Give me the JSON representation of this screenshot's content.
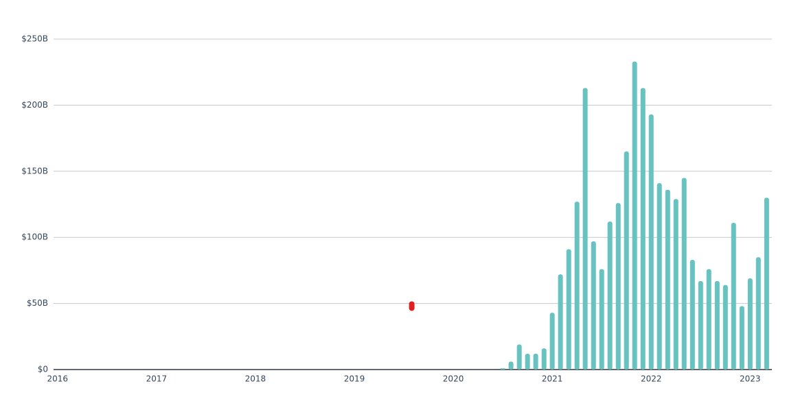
{
  "chart_data": {
    "type": "bar",
    "color": "#67c2c0",
    "grid": true,
    "x": [
      2020.5,
      2020.583,
      2020.667,
      2020.75,
      2020.833,
      2020.917,
      2021.0,
      2021.083,
      2021.167,
      2021.25,
      2021.333,
      2021.417,
      2021.5,
      2021.583,
      2021.667,
      2021.75,
      2021.833,
      2021.917,
      2022.0,
      2022.083,
      2022.167,
      2022.25,
      2022.333,
      2022.417,
      2022.5,
      2022.583,
      2022.667,
      2022.75,
      2022.833,
      2022.917,
      2023.0,
      2023.083,
      2023.167
    ],
    "values": [
      1,
      6,
      19,
      12,
      12,
      16,
      43,
      72,
      91,
      127,
      213,
      97,
      76,
      112,
      126,
      165,
      233,
      213,
      193,
      141,
      136,
      129,
      145,
      83,
      67,
      76,
      67,
      64,
      111,
      48,
      69,
      85,
      130
    ],
    "highlight_point": {
      "x": 2019.58,
      "value": 48,
      "color": "#e02020"
    },
    "xlim": [
      2015.96,
      2023.22
    ],
    "xticks": [
      2016,
      2017,
      2018,
      2019,
      2020,
      2021,
      2022,
      2023
    ],
    "ylim": [
      0,
      250
    ],
    "yticks": [
      {
        "value": 0,
        "label": "$0"
      },
      {
        "value": 50,
        "label": "$50B"
      },
      {
        "value": 100,
        "label": "$100B"
      },
      {
        "value": 150,
        "label": "$150B"
      },
      {
        "value": 200,
        "label": "$200B"
      },
      {
        "value": 250,
        "label": "$250B"
      }
    ]
  }
}
